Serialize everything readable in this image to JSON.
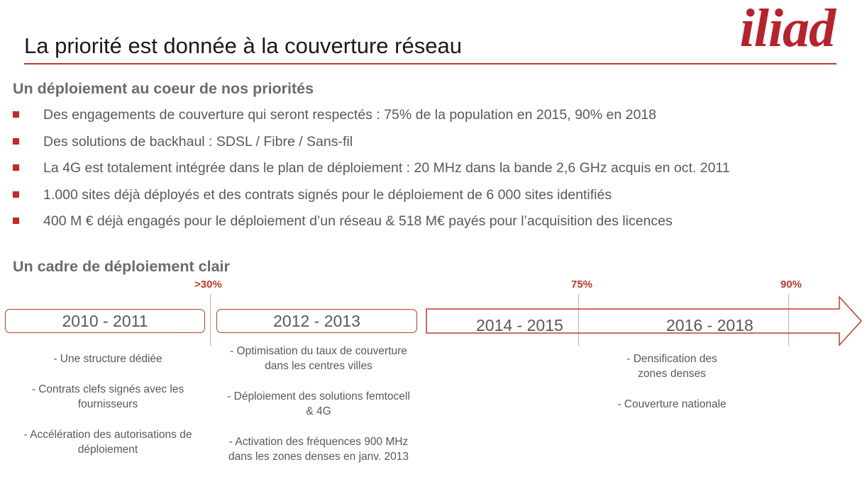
{
  "header": {
    "title": "La priorité est donnée à la couverture réseau",
    "logo_text": "iliad"
  },
  "section1": {
    "heading": "Un déploiement au coeur de nos priorités",
    "bullets": [
      "Des engagements de couverture qui seront respectés : 75% de la population en 2015, 90% en 2018",
      "Des solutions de backhaul : SDSL / Fibre / Sans-fil",
      "La 4G est totalement intégrée dans le plan de déploiement : 20 MHz dans la bande 2,6 GHz acquis en oct. 2011",
      "1.000 sites déjà déployés et des contrats signés pour le déploiement de 6 000 sites identifiés",
      "400 M € déjà engagés pour le déploiement d’un réseau & 518 M€ payés pour l’acquisition des licences"
    ]
  },
  "section2": {
    "heading": "Un cadre de déploiement clair",
    "milestones": [
      ">30%",
      "75%",
      "90%"
    ],
    "periods": [
      "2010 - 2011",
      "2012 - 2013",
      "2014 - 2015",
      "2016 - 2018"
    ],
    "col1": [
      "-   Une structure dédiée",
      "- Contrats clefs signés avec les fournisseurs",
      "-   Accélération des autorisations de déploiement"
    ],
    "col2": [
      "- Optimisation du taux de couverture dans les centres villes",
      "- Déploiement des solutions femtocell & 4G",
      "- Activation des fréquences 900 MHz dans les zones denses en janv. 2013"
    ],
    "col3": [
      "-   Densification des zones denses",
      "- Couverture nationale"
    ]
  },
  "colors": {
    "accent": "#c0392b",
    "text": "#595959"
  }
}
